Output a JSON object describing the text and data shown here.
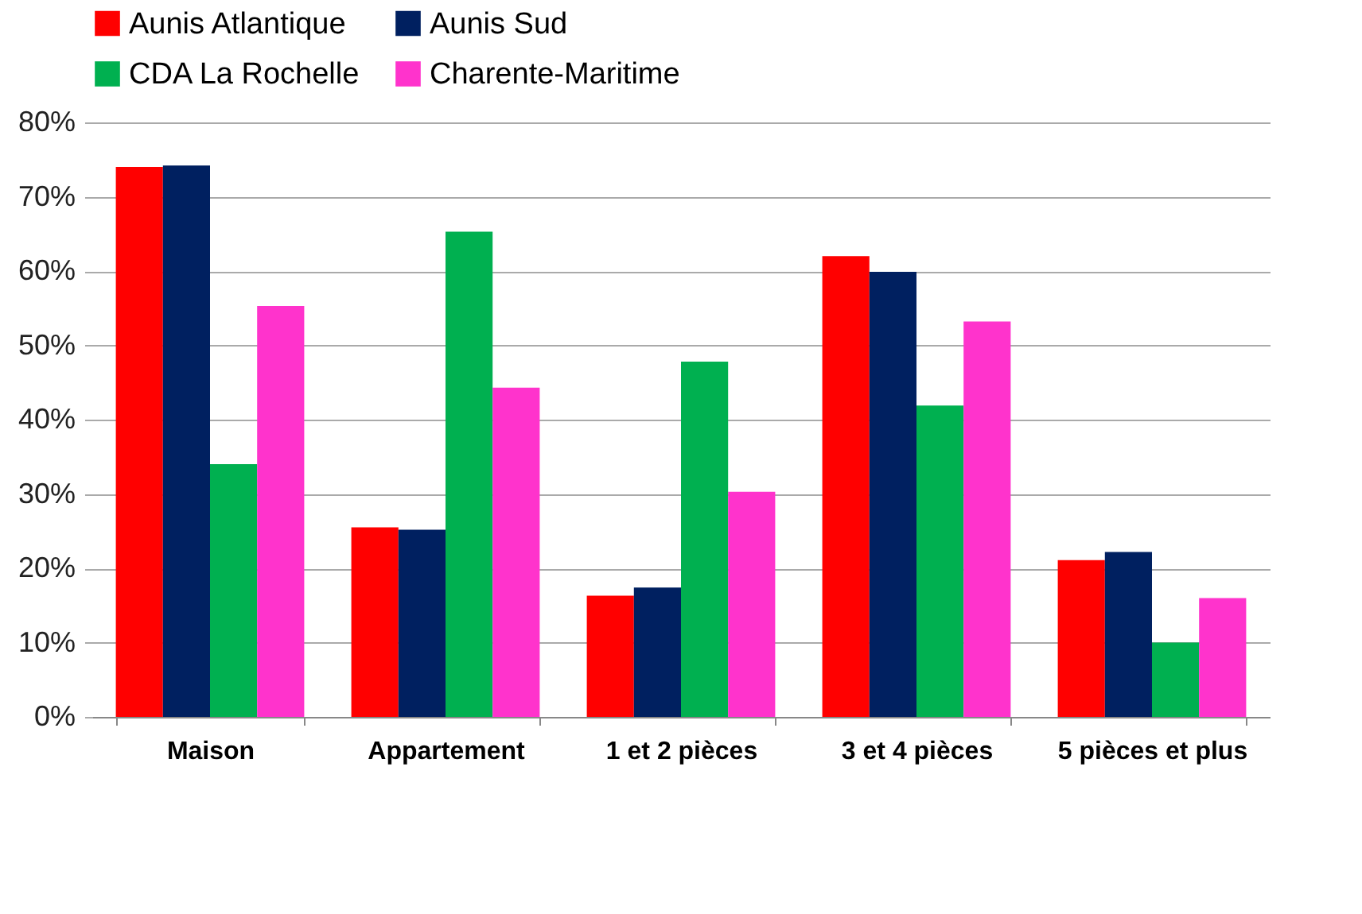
{
  "chart_data": {
    "type": "bar",
    "categories": [
      "Maison",
      "Appartement",
      "1 et 2 pièces",
      "3 et 4 pièces",
      "5 pièces et plus"
    ],
    "series": [
      {
        "name": "Aunis Atlantique",
        "color": "#ff0000",
        "values": [
          74.0,
          25.5,
          16.3,
          62.0,
          21.1
        ]
      },
      {
        "name": "Aunis Sud",
        "color": "#002060",
        "values": [
          74.2,
          25.2,
          17.4,
          59.9,
          22.2
        ]
      },
      {
        "name": "CDA La Rochelle",
        "color": "#00b050",
        "values": [
          34.0,
          65.3,
          47.8,
          41.9,
          10.0
        ]
      },
      {
        "name": "Charente-Maritime",
        "color": "#ff33cc",
        "values": [
          55.3,
          44.3,
          30.3,
          53.2,
          16.0
        ]
      }
    ],
    "ylim": [
      0,
      80
    ],
    "yticks": [
      {
        "value": 0,
        "label": "0%"
      },
      {
        "value": 10,
        "label": "10%"
      },
      {
        "value": 20,
        "label": "20%"
      },
      {
        "value": 30,
        "label": "30%"
      },
      {
        "value": 40,
        "label": "40%"
      },
      {
        "value": 50,
        "label": "50%"
      },
      {
        "value": 60,
        "label": "60%"
      },
      {
        "value": 70,
        "label": "70%"
      },
      {
        "value": 80,
        "label": "80%"
      }
    ],
    "grid": "y",
    "legend": "top"
  }
}
